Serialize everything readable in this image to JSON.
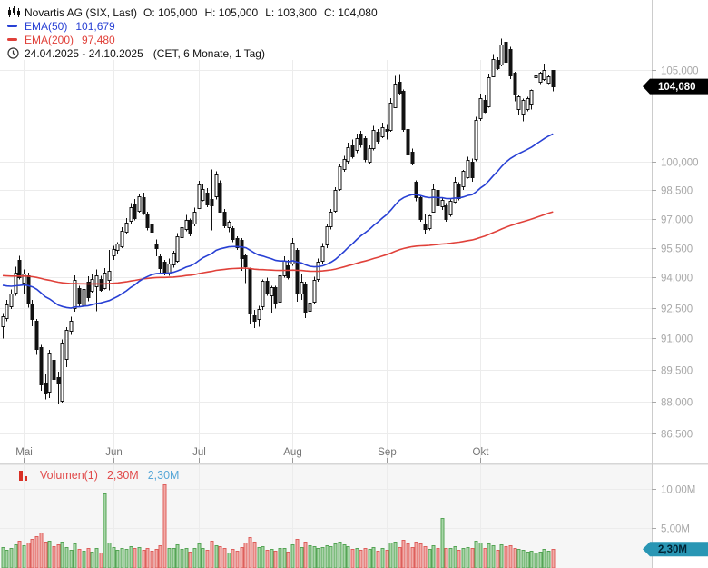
{
  "header": {
    "instrument": "Novartis AG (SIX, Last)",
    "open_label": "O:",
    "open_value": "105,000",
    "high_label": "H:",
    "high_value": "105,000",
    "low_label": "L:",
    "low_value": "103,800",
    "close_label": "C:",
    "close_value": "104,080",
    "ema50_label": "EMA(50)",
    "ema50_value": "101,679",
    "ema200_label": "EMA(200)",
    "ema200_value": "97,480",
    "date_range": "24.04.2025 - 24.10.2025",
    "period_info": "(CET, 6 Monate, 1 Tag)"
  },
  "volume_legend": {
    "label": "Volumen(1)",
    "value_red": "2,30M",
    "value_blue": "2,30M"
  },
  "colors": {
    "ema50": "#2840d4",
    "ema200": "#e0413a",
    "candle_up_fill": "#ffffff",
    "candle_down_fill": "#111111",
    "candle_border": "#111111",
    "vol_up_fill": "#a8d6a8",
    "vol_up_stroke": "#55a455",
    "vol_down_fill": "#f2aca9",
    "vol_down_stroke": "#dd5f5c",
    "grid": "#ececec",
    "axis_line": "#cccccc",
    "axis_text": "#a8a8a8",
    "month_text": "#757575",
    "last_price_tag_bg": "#000000",
    "last_price_tag_text": "#ffffff",
    "volume_tag_bg": "#2996b4",
    "volume_tag_text": "#002233",
    "volume_panel_bg": "#f6f6f6",
    "divider": "#d6d6d6"
  },
  "chart_data": {
    "type": "candlestick_with_volume",
    "title": "Novartis AG (SIX, Last)",
    "x_axis": {
      "months": [
        {
          "label": "Mai",
          "index": 5
        },
        {
          "label": "Jun",
          "index": 26
        },
        {
          "label": "Jul",
          "index": 46
        },
        {
          "label": "Aug",
          "index": 68
        },
        {
          "label": "Sep",
          "index": 90
        },
        {
          "label": "Okt",
          "index": 112
        }
      ]
    },
    "price_axis": {
      "scale": "log",
      "labels": [
        {
          "value": 105000,
          "text": "105,000"
        },
        {
          "value": 100000,
          "text": "100,000"
        },
        {
          "value": 98500,
          "text": "98,500"
        },
        {
          "value": 97000,
          "text": "97,000"
        },
        {
          "value": 95500,
          "text": "95,500"
        },
        {
          "value": 94000,
          "text": "94,000"
        },
        {
          "value": 92500,
          "text": "92,500"
        },
        {
          "value": 91000,
          "text": "91,000"
        },
        {
          "value": 89500,
          "text": "89,500"
        },
        {
          "value": 88000,
          "text": "88,000"
        },
        {
          "value": 86500,
          "text": "86,500"
        }
      ],
      "last_price": 104080,
      "last_price_text": "104,080"
    },
    "volume_axis": {
      "labels": [
        {
          "value": 10.0,
          "text": "10,00M"
        },
        {
          "value": 5.0,
          "text": "5,00M"
        }
      ],
      "last_volume": 2.3,
      "last_volume_text": "2,30M"
    },
    "indicators": {
      "ema50": {
        "period": 50,
        "seed": 93680,
        "final_value": 101679
      },
      "ema200": {
        "period": 200,
        "seed": 94120,
        "final_value": 97480
      }
    },
    "candles_format": [
      "open",
      "high",
      "low",
      "close",
      "volume_millions"
    ],
    "candles": [
      [
        91600,
        92250,
        91000,
        92100,
        2.6
      ],
      [
        92000,
        92900,
        91850,
        92650,
        2.2
      ],
      [
        92550,
        93400,
        92450,
        93200,
        2.4
      ],
      [
        93250,
        94550,
        93100,
        94250,
        2.9
      ],
      [
        94900,
        95100,
        93900,
        94050,
        3.4
      ],
      [
        93750,
        94400,
        93200,
        94200,
        2.8
      ],
      [
        94100,
        94250,
        92500,
        92750,
        3.1
      ],
      [
        92700,
        92900,
        91600,
        91950,
        3.6
      ],
      [
        91850,
        91950,
        90200,
        90500,
        3.9
      ],
      [
        90600,
        90700,
        88500,
        88800,
        4.4
      ],
      [
        88900,
        89300,
        88100,
        88400,
        3.2
      ],
      [
        88450,
        90450,
        88150,
        90300,
        3.4
      ],
      [
        89950,
        90300,
        88800,
        89050,
        2.7
      ],
      [
        89150,
        89400,
        87900,
        88900,
        2.9
      ],
      [
        88050,
        90950,
        87950,
        90800,
        3.3
      ],
      [
        90000,
        91550,
        89610,
        91400,
        2.6
      ],
      [
        91350,
        92065,
        91185,
        91840,
        2.2
      ],
      [
        92475,
        94120,
        92300,
        93875,
        3.0
      ],
      [
        93490,
        93600,
        92585,
        92730,
        2.3
      ],
      [
        92585,
        93500,
        92500,
        93415,
        2.1
      ],
      [
        93795,
        94060,
        92815,
        93040,
        2.4
      ],
      [
        93355,
        94185,
        93250,
        93950,
        2.0
      ],
      [
        93580,
        94415,
        92320,
        94120,
        2.5
      ],
      [
        93950,
        94100,
        93300,
        93415,
        1.9
      ],
      [
        93500,
        94485,
        93400,
        94260,
        9.4
      ],
      [
        93875,
        95395,
        93355,
        94345,
        3.1
      ],
      [
        95160,
        95600,
        94900,
        95465,
        2.6
      ],
      [
        95390,
        95800,
        95200,
        95700,
        2.2
      ],
      [
        95620,
        96555,
        95500,
        96395,
        2.4
      ],
      [
        96320,
        97030,
        96200,
        96790,
        2.3
      ],
      [
        96875,
        97810,
        96750,
        97585,
        2.7
      ],
      [
        97730,
        98030,
        96900,
        97030,
        2.5
      ],
      [
        97425,
        98315,
        97300,
        98185,
        2.6
      ],
      [
        98100,
        98350,
        97200,
        97265,
        2.2
      ],
      [
        97265,
        97350,
        96400,
        96555,
        2.4
      ],
      [
        96710,
        96900,
        95705,
        96320,
        2.1
      ],
      [
        95700,
        95930,
        95085,
        95470,
        2.3
      ],
      [
        95085,
        95200,
        94260,
        94485,
        2.8
      ],
      [
        94790,
        94900,
        94120,
        94190,
        10.6
      ],
      [
        94250,
        94950,
        94100,
        94700,
        2.5
      ],
      [
        94635,
        95350,
        94500,
        95240,
        2.4
      ],
      [
        94860,
        96255,
        94750,
        96100,
        2.9
      ],
      [
        96025,
        96700,
        95900,
        96555,
        2.3
      ],
      [
        96480,
        97190,
        96350,
        96950,
        2.4
      ],
      [
        96950,
        97000,
        96100,
        96250,
        2.0
      ],
      [
        96715,
        97580,
        96600,
        97345,
        2.5
      ],
      [
        97580,
        98975,
        97500,
        98805,
        3.0
      ],
      [
        97975,
        98805,
        97900,
        98530,
        2.4
      ],
      [
        98345,
        98600,
        97600,
        97710,
        2.2
      ],
      [
        98030,
        99565,
        96400,
        97710,
        3.4
      ],
      [
        98190,
        99485,
        98000,
        99330,
        2.8
      ],
      [
        98880,
        99000,
        97300,
        97375,
        2.7
      ],
      [
        97375,
        97500,
        96510,
        96665,
        2.5
      ],
      [
        96555,
        96900,
        96300,
        96855,
        1.9
      ],
      [
        96510,
        96600,
        95800,
        95930,
        2.3
      ],
      [
        96005,
        96100,
        95390,
        95545,
        2.1
      ],
      [
        95930,
        96000,
        94330,
        95010,
        2.6
      ],
      [
        95100,
        95200,
        93730,
        94570,
        3.1
      ],
      [
        94420,
        94500,
        91715,
        92250,
        3.8
      ],
      [
        92150,
        92400,
        91500,
        91900,
        3.2
      ],
      [
        91950,
        92600,
        91580,
        92450,
        2.6
      ],
      [
        92550,
        93900,
        92400,
        93820,
        2.7
      ],
      [
        93820,
        94000,
        93100,
        93210,
        2.2
      ],
      [
        93100,
        93600,
        92270,
        93500,
        2.3
      ],
      [
        93510,
        93600,
        92460,
        92745,
        2.1
      ],
      [
        92800,
        94345,
        92700,
        94120,
        2.5
      ],
      [
        94120,
        95085,
        94000,
        94860,
        2.4
      ],
      [
        94620,
        94900,
        93900,
        94030,
        2.0
      ],
      [
        94710,
        96010,
        94600,
        95780,
        2.9
      ],
      [
        95400,
        95500,
        92800,
        93200,
        3.6
      ],
      [
        93200,
        94200,
        92900,
        93800,
        2.6
      ],
      [
        93700,
        93800,
        92000,
        92300,
        3.3
      ],
      [
        92350,
        93000,
        91950,
        92750,
        2.8
      ],
      [
        92800,
        94050,
        92700,
        93900,
        2.7
      ],
      [
        93950,
        94950,
        93800,
        94800,
        2.5
      ],
      [
        94850,
        95750,
        94700,
        95600,
        2.6
      ],
      [
        95650,
        96750,
        95500,
        96600,
        2.8
      ],
      [
        96600,
        97500,
        96450,
        97350,
        2.7
      ],
      [
        97400,
        98650,
        97300,
        98500,
        3.0
      ],
      [
        98550,
        99900,
        98450,
        99750,
        3.2
      ],
      [
        99600,
        100300,
        99450,
        100150,
        2.9
      ],
      [
        100050,
        101015,
        99900,
        100780,
        2.7
      ],
      [
        100880,
        101180,
        100150,
        100295,
        2.3
      ],
      [
        100635,
        101510,
        100450,
        101265,
        2.4
      ],
      [
        101510,
        101650,
        100750,
        100905,
        2.2
      ],
      [
        101265,
        101350,
        99970,
        100130,
        2.5
      ],
      [
        99970,
        100850,
        99900,
        100700,
        2.3
      ],
      [
        100700,
        101920,
        100600,
        101675,
        2.6
      ],
      [
        101590,
        101750,
        100950,
        101100,
        2.1
      ],
      [
        101345,
        102085,
        101250,
        101845,
        2.4
      ],
      [
        101750,
        102003,
        101190,
        101650,
        2.2
      ],
      [
        101675,
        103440,
        101600,
        103186,
        3.1
      ],
      [
        102935,
        104660,
        102900,
        104220,
        3.3
      ],
      [
        104320,
        104780,
        103600,
        103730,
        2.6
      ],
      [
        103830,
        103900,
        101600,
        101760,
        3.5
      ],
      [
        101760,
        101800,
        100130,
        100380,
        3.0
      ],
      [
        100540,
        100700,
        99800,
        99890,
        2.6
      ],
      [
        98930,
        99000,
        97900,
        98100,
        3.2
      ],
      [
        98130,
        98200,
        96830,
        96980,
        3.0
      ],
      [
        96700,
        97215,
        96200,
        96450,
        2.7
      ],
      [
        96500,
        97200,
        96400,
        97150,
        2.3
      ],
      [
        97380,
        98800,
        97300,
        98560,
        2.8
      ],
      [
        98480,
        98600,
        97550,
        97660,
        2.4
      ],
      [
        97600,
        98050,
        97450,
        97950,
        6.3
      ],
      [
        97680,
        97800,
        96830,
        96980,
        2.5
      ],
      [
        97215,
        98000,
        97100,
        97930,
        2.4
      ],
      [
        97880,
        99165,
        97800,
        98925,
        2.7
      ],
      [
        98760,
        98900,
        97950,
        98055,
        2.2
      ],
      [
        98660,
        99550,
        98500,
        99485,
        2.5
      ],
      [
        99200,
        100250,
        99100,
        100100,
        2.6
      ],
      [
        100000,
        100150,
        98930,
        99200,
        2.4
      ],
      [
        100130,
        102420,
        100000,
        102250,
        3.4
      ],
      [
        102335,
        103690,
        102200,
        103440,
        3.1
      ],
      [
        103355,
        103600,
        102600,
        102690,
        2.4
      ],
      [
        103000,
        104800,
        102900,
        104600,
        3.0
      ],
      [
        104680,
        105890,
        104600,
        105625,
        2.8
      ],
      [
        105540,
        105700,
        105000,
        105105,
        2.2
      ],
      [
        105280,
        106770,
        105200,
        106420,
        2.9
      ],
      [
        106595,
        107030,
        105400,
        105470,
        2.7
      ],
      [
        106160,
        106300,
        104500,
        104660,
        2.8
      ],
      [
        104830,
        104900,
        103270,
        103600,
        2.5
      ],
      [
        102840,
        103600,
        102500,
        103530,
        2.3
      ],
      [
        102630,
        103400,
        102170,
        103355,
        2.2
      ],
      [
        102835,
        103500,
        102700,
        103440,
        2.0
      ],
      [
        103100,
        103900,
        102800,
        103860,
        2.1
      ],
      [
        104600,
        104830,
        104300,
        104700,
        1.9
      ],
      [
        104330,
        104900,
        104200,
        104845,
        2.0
      ],
      [
        104495,
        105355,
        104400,
        105010,
        2.3
      ],
      [
        104330,
        104700,
        104200,
        104660,
        2.1
      ],
      [
        105000,
        105000,
        103800,
        104080,
        2.3
      ]
    ]
  }
}
